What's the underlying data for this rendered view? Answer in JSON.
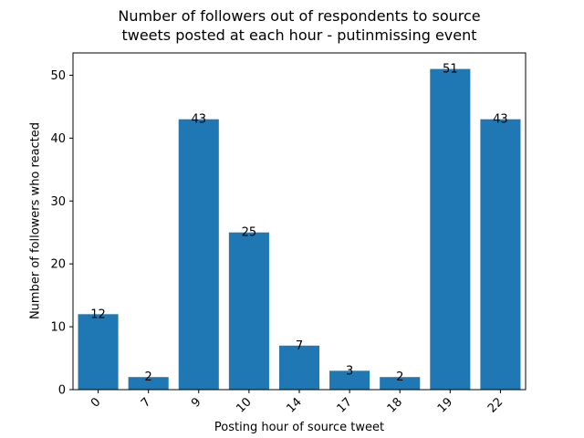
{
  "chart_data": {
    "type": "bar",
    "title_lines": [
      "Number of followers out of respondents to source",
      "tweets posted at each hour - putinmissing event"
    ],
    "xlabel": "Posting hour of source tweet",
    "ylabel": "Number of followers who reacted",
    "categories": [
      "0",
      "7",
      "9",
      "10",
      "14",
      "17",
      "18",
      "19",
      "22"
    ],
    "values": [
      12,
      2,
      43,
      25,
      7,
      3,
      2,
      51,
      43
    ],
    "data_labels": [
      "12",
      "2",
      "43",
      "25",
      "7",
      "3",
      "2",
      "51",
      "43"
    ],
    "y_ticks": [
      0,
      10,
      20,
      30,
      40,
      50
    ],
    "ylim": [
      0,
      53.55
    ],
    "bar_color": "#1f77b4",
    "grid": false,
    "x_tick_rotation": 45
  }
}
